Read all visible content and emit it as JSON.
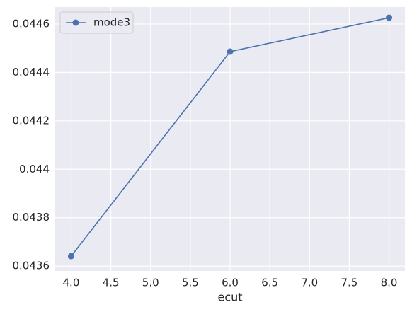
{
  "chart_data": {
    "type": "line",
    "x_label": "ecut",
    "x": [
      4.0,
      6.0,
      8.0
    ],
    "series": [
      {
        "name": "mode3",
        "color": "#4c72b0",
        "values": [
          0.043641,
          0.044486,
          0.044626
        ]
      }
    ],
    "xlim": [
      3.8,
      8.2
    ],
    "xticks": [
      {
        "value": 4,
        "label": "4.0"
      },
      {
        "value": 4.5,
        "label": "4.5"
      },
      {
        "value": 5,
        "label": "5.0"
      },
      {
        "value": 5.5,
        "label": "5.5"
      },
      {
        "value": 6,
        "label": "6.0"
      },
      {
        "value": 6.5,
        "label": "6.5"
      },
      {
        "value": 7,
        "label": "7.0"
      },
      {
        "value": 7.5,
        "label": "7.5"
      },
      {
        "value": 8,
        "label": "8.0"
      }
    ],
    "ylim": [
      0.04358,
      0.04467
    ],
    "yticks": [
      0.0436,
      0.0438,
      0.044,
      0.0442,
      0.0444,
      0.0446
    ],
    "grid": true,
    "legend": "upper-left",
    "background": "#eaeaf2"
  }
}
